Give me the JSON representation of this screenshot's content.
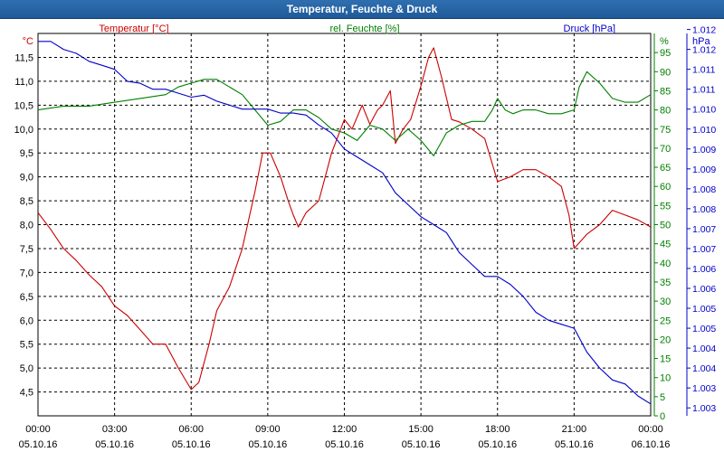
{
  "window": {
    "title": "Temperatur, Feuchte & Druck"
  },
  "colors": {
    "temperature": "#cc0000",
    "humidity": "#008000",
    "pressure": "#0000cc",
    "grid": "#000000",
    "title_bar": "#2566a6"
  },
  "chart_data": {
    "type": "line",
    "title": "Temperatur, Feuchte & Druck",
    "grid": true,
    "legend": "top labels above each axis",
    "x": {
      "range_hours": [
        0,
        24
      ],
      "ticks": [
        {
          "time": "00:00",
          "date": "05.10.16"
        },
        {
          "time": "03:00",
          "date": "05.10.16"
        },
        {
          "time": "06:00",
          "date": "05.10.16"
        },
        {
          "time": "09:00",
          "date": "05.10.16"
        },
        {
          "time": "12:00",
          "date": "05.10.16"
        },
        {
          "time": "15:00",
          "date": "05.10.16"
        },
        {
          "time": "18:00",
          "date": "05.10.16"
        },
        {
          "time": "21:00",
          "date": "05.10.16"
        },
        {
          "time": "00:00",
          "date": "06.10.16"
        }
      ]
    },
    "axes": {
      "left": {
        "unit": "°C",
        "ylim": [
          4.0,
          12.0
        ],
        "ticks": [
          "4,5",
          "5,0",
          "5,5",
          "6,0",
          "6,5",
          "7,0",
          "7,5",
          "8,0",
          "8,5",
          "9,0",
          "9,5",
          "10,0",
          "10,5",
          "11,0",
          "11,5"
        ]
      },
      "middle": {
        "unit": "%",
        "ylim": [
          0,
          100
        ],
        "ticks": [
          "0",
          "5",
          "10",
          "15",
          "20",
          "25",
          "30",
          "35",
          "40",
          "45",
          "50",
          "55",
          "60",
          "65",
          "70",
          "75",
          "80",
          "85",
          "90",
          "95"
        ]
      },
      "right": {
        "unit": "hPa",
        "ylim": [
          1002.7,
          1012.3
        ],
        "ticks": [
          "1.003",
          "1.003",
          "1.004",
          "1.004",
          "1.005",
          "1.005",
          "1.006",
          "1.006",
          "1.007",
          "1.007",
          "1.008",
          "1.008",
          "1.009",
          "1.009",
          "1.010",
          "1.010",
          "1.011",
          "1.011",
          "1.012",
          "1.012"
        ]
      }
    },
    "series": [
      {
        "name": "Temperatur [°C]",
        "axis": "left",
        "points": [
          [
            0.0,
            8.25
          ],
          [
            0.5,
            7.9
          ],
          [
            1.0,
            7.5
          ],
          [
            1.5,
            7.25
          ],
          [
            2.0,
            6.95
          ],
          [
            2.5,
            6.7
          ],
          [
            3.0,
            6.3
          ],
          [
            3.5,
            6.1
          ],
          [
            4.0,
            5.8
          ],
          [
            4.5,
            5.5
          ],
          [
            5.0,
            5.5
          ],
          [
            5.5,
            5.0
          ],
          [
            6.0,
            4.55
          ],
          [
            6.3,
            4.7
          ],
          [
            6.7,
            5.5
          ],
          [
            7.0,
            6.2
          ],
          [
            7.5,
            6.7
          ],
          [
            8.0,
            7.5
          ],
          [
            8.5,
            8.7
          ],
          [
            8.8,
            9.5
          ],
          [
            9.1,
            9.5
          ],
          [
            9.5,
            9.0
          ],
          [
            9.8,
            8.5
          ],
          [
            10.0,
            8.2
          ],
          [
            10.2,
            7.95
          ],
          [
            10.5,
            8.25
          ],
          [
            11.0,
            8.5
          ],
          [
            11.5,
            9.5
          ],
          [
            12.0,
            10.2
          ],
          [
            12.3,
            10.0
          ],
          [
            12.7,
            10.5
          ],
          [
            13.0,
            10.1
          ],
          [
            13.3,
            10.4
          ],
          [
            13.5,
            10.5
          ],
          [
            13.8,
            10.8
          ],
          [
            14.0,
            9.7
          ],
          [
            14.3,
            10.0
          ],
          [
            14.6,
            10.2
          ],
          [
            15.0,
            10.9
          ],
          [
            15.3,
            11.5
          ],
          [
            15.5,
            11.7
          ],
          [
            15.8,
            11.1
          ],
          [
            16.2,
            10.2
          ],
          [
            16.5,
            10.15
          ],
          [
            17.0,
            10.0
          ],
          [
            17.5,
            9.8
          ],
          [
            18.0,
            8.9
          ],
          [
            18.5,
            9.0
          ],
          [
            19.0,
            9.15
          ],
          [
            19.5,
            9.15
          ],
          [
            20.0,
            9.0
          ],
          [
            20.5,
            8.8
          ],
          [
            20.8,
            8.2
          ],
          [
            21.0,
            7.5
          ],
          [
            21.5,
            7.8
          ],
          [
            22.0,
            8.0
          ],
          [
            22.5,
            8.3
          ],
          [
            23.0,
            8.2
          ],
          [
            23.5,
            8.1
          ],
          [
            24.0,
            7.95
          ]
        ]
      },
      {
        "name": "rel. Feuchte [%]",
        "axis": "middle",
        "points": [
          [
            0.0,
            80
          ],
          [
            1.0,
            81
          ],
          [
            2.0,
            81
          ],
          [
            3.0,
            82
          ],
          [
            4.0,
            83
          ],
          [
            5.0,
            84
          ],
          [
            5.5,
            86
          ],
          [
            6.0,
            87
          ],
          [
            6.5,
            88
          ],
          [
            7.0,
            88
          ],
          [
            7.5,
            86
          ],
          [
            8.0,
            84
          ],
          [
            8.5,
            80
          ],
          [
            9.0,
            76
          ],
          [
            9.5,
            77
          ],
          [
            10.0,
            80
          ],
          [
            10.5,
            80
          ],
          [
            11.0,
            78
          ],
          [
            11.5,
            75
          ],
          [
            12.0,
            74
          ],
          [
            12.5,
            72
          ],
          [
            13.0,
            76
          ],
          [
            13.5,
            75
          ],
          [
            14.0,
            72
          ],
          [
            14.5,
            75
          ],
          [
            15.0,
            72
          ],
          [
            15.5,
            68
          ],
          [
            16.0,
            74
          ],
          [
            16.5,
            76
          ],
          [
            17.0,
            77
          ],
          [
            17.5,
            77
          ],
          [
            17.8,
            80
          ],
          [
            18.0,
            83
          ],
          [
            18.3,
            80
          ],
          [
            18.6,
            79
          ],
          [
            19.0,
            80
          ],
          [
            19.5,
            80
          ],
          [
            20.0,
            79
          ],
          [
            20.5,
            79
          ],
          [
            21.0,
            80
          ],
          [
            21.2,
            86
          ],
          [
            21.5,
            90
          ],
          [
            22.0,
            87
          ],
          [
            22.5,
            83
          ],
          [
            23.0,
            82
          ],
          [
            23.5,
            82
          ],
          [
            24.0,
            84
          ]
        ]
      },
      {
        "name": "Druck [hPa]",
        "axis": "right",
        "points": [
          [
            0.0,
            1012.1
          ],
          [
            0.5,
            1012.1
          ],
          [
            1.0,
            1011.9
          ],
          [
            1.5,
            1011.8
          ],
          [
            2.0,
            1011.6
          ],
          [
            2.5,
            1011.5
          ],
          [
            3.0,
            1011.4
          ],
          [
            3.5,
            1011.1
          ],
          [
            4.0,
            1011.05
          ],
          [
            4.5,
            1010.9
          ],
          [
            5.0,
            1010.9
          ],
          [
            5.5,
            1010.8
          ],
          [
            6.0,
            1010.7
          ],
          [
            6.5,
            1010.75
          ],
          [
            7.0,
            1010.6
          ],
          [
            7.5,
            1010.5
          ],
          [
            8.0,
            1010.4
          ],
          [
            8.5,
            1010.4
          ],
          [
            9.0,
            1010.4
          ],
          [
            9.5,
            1010.3
          ],
          [
            10.0,
            1010.3
          ],
          [
            10.5,
            1010.25
          ],
          [
            11.0,
            1010.0
          ],
          [
            11.5,
            1009.8
          ],
          [
            12.0,
            1009.4
          ],
          [
            12.5,
            1009.2
          ],
          [
            13.0,
            1009.0
          ],
          [
            13.5,
            1008.8
          ],
          [
            14.0,
            1008.3
          ],
          [
            14.5,
            1008.0
          ],
          [
            15.0,
            1007.7
          ],
          [
            15.5,
            1007.5
          ],
          [
            16.0,
            1007.3
          ],
          [
            16.5,
            1006.8
          ],
          [
            17.0,
            1006.5
          ],
          [
            17.5,
            1006.2
          ],
          [
            18.0,
            1006.2
          ],
          [
            18.5,
            1006.0
          ],
          [
            19.0,
            1005.7
          ],
          [
            19.5,
            1005.3
          ],
          [
            20.0,
            1005.1
          ],
          [
            20.5,
            1005.0
          ],
          [
            21.0,
            1004.9
          ],
          [
            21.5,
            1004.3
          ],
          [
            22.0,
            1003.9
          ],
          [
            22.5,
            1003.6
          ],
          [
            23.0,
            1003.5
          ],
          [
            23.5,
            1003.2
          ],
          [
            24.0,
            1003.0
          ]
        ]
      }
    ]
  }
}
